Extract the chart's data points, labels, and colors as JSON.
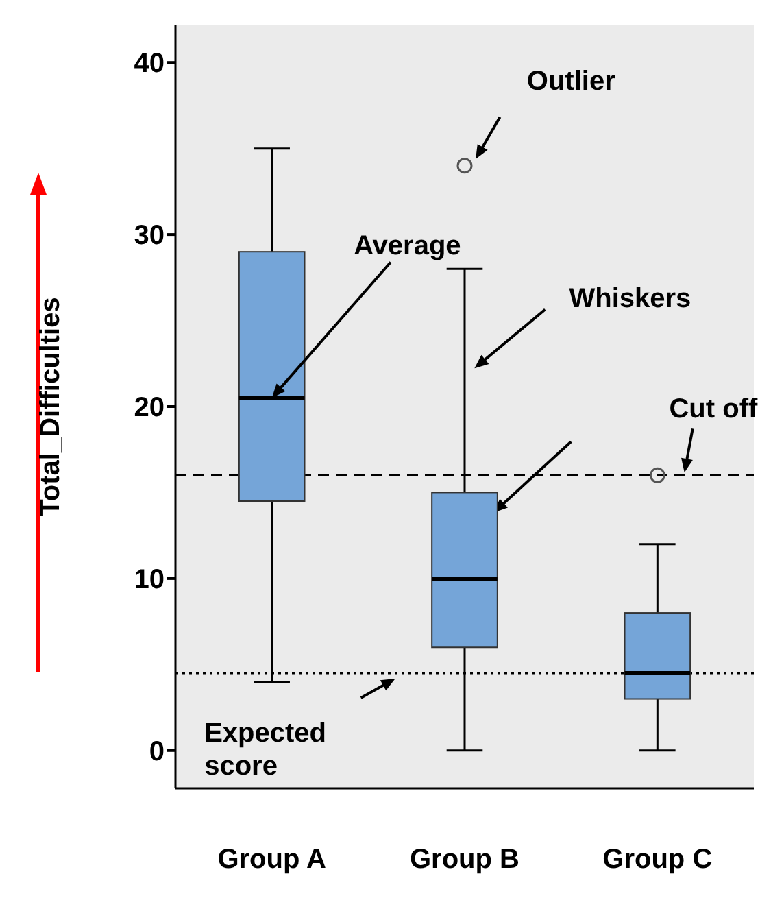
{
  "chart_data": {
    "type": "box",
    "categories": [
      "Group A",
      "Group B",
      "Group C"
    ],
    "boxes": [
      {
        "low": 4,
        "q1": 14.5,
        "median": 20.5,
        "q3": 29,
        "high": 35
      },
      {
        "low": 0,
        "q1": 6,
        "median": 10,
        "q3": 15,
        "high": 28,
        "outliers": [
          34
        ]
      },
      {
        "low": 0,
        "q1": 3,
        "median": 4.5,
        "q3": 8,
        "high": 12,
        "outliers": [
          16
        ]
      }
    ],
    "color": "#75a5d8",
    "ylabel": "Total_Difficulties",
    "ylim": [
      -2.2,
      42.2
    ],
    "yticks": [
      0,
      10,
      20,
      30,
      40
    ],
    "ref_lines": [
      {
        "axis": "y",
        "value": 16,
        "label": "Cut off",
        "line_style": "dashed"
      },
      {
        "axis": "y",
        "value": 4.5,
        "label": "Expected score",
        "line_style": "dotted"
      }
    ],
    "annotations": [
      "Outlier",
      {
        "text": "Average",
        "x": "Group A",
        "y": 20.5
      },
      "Whiskers"
    ]
  }
}
